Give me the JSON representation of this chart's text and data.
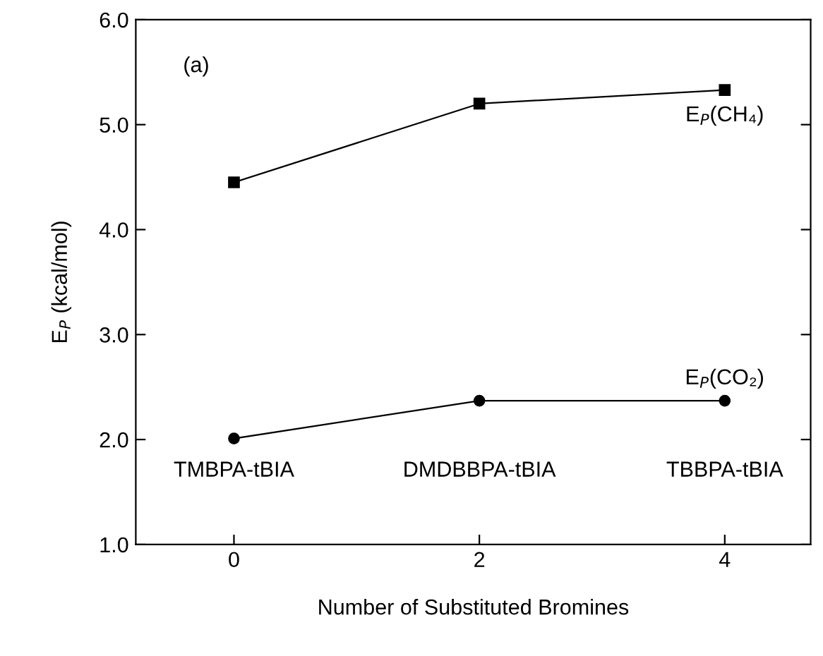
{
  "chart_data": {
    "type": "line",
    "xlabel": "Number of Substituted Bromines",
    "ylabel": "E$_{P}$ (kcal/mol)",
    "x": [
      0,
      2,
      4
    ],
    "series": [
      {
        "name": "E$_{P}$(CH₄)",
        "color": "#000000",
        "marker": "square",
        "values": [
          4.45,
          5.2,
          5.33
        ]
      },
      {
        "name": "E$_{P}$(CO₂)",
        "color": "#000000",
        "marker": "circle",
        "values": [
          2.01,
          2.37,
          2.37
        ]
      }
    ],
    "xlim": [
      -0.8,
      4.7
    ],
    "xticks": [
      0,
      2,
      4
    ],
    "ylim": [
      1.0,
      6.0
    ],
    "yticks": [
      {
        "value": 1.0,
        "label": "1.0"
      },
      {
        "value": 2.0,
        "label": "2.0"
      },
      {
        "value": 3.0,
        "label": "3.0"
      },
      {
        "value": 4.0,
        "label": "4.0"
      },
      {
        "value": 5.0,
        "label": "5.0"
      },
      {
        "value": 6.0,
        "label": "6.0"
      }
    ],
    "annotations": [
      "(a)",
      "TMBPA-tBIA",
      "DMDBBPA-tBIA",
      "TBBPA-tBIA"
    ],
    "grid": false,
    "legend": "right",
    "line_style": "solid"
  }
}
